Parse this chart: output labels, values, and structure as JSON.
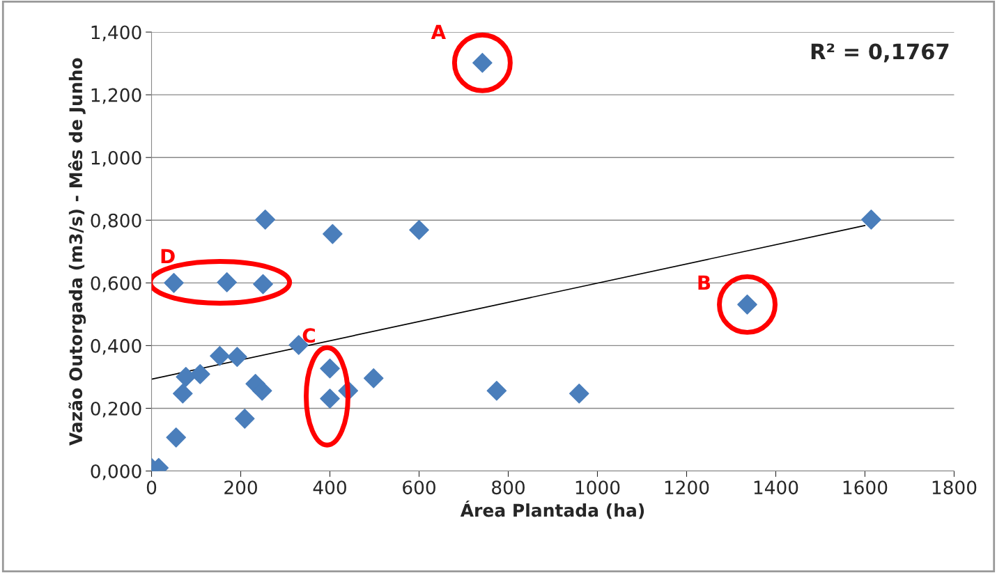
{
  "chart_data": {
    "type": "scatter",
    "xlabel": "Área Plantada (ha)",
    "ylabel": "Vazão Outorgada (m3/s) - Mês de Junho",
    "xlim": [
      0,
      1800
    ],
    "xticks": [
      0,
      200,
      400,
      600,
      800,
      1000,
      1200,
      1400,
      1600,
      1800
    ],
    "ylim": [
      0,
      1.4
    ],
    "yticks": [
      {
        "value": 0,
        "label": "0,000"
      },
      {
        "value": 0.2,
        "label": "0,200"
      },
      {
        "value": 0.4,
        "label": "0,400"
      },
      {
        "value": 0.6,
        "label": "0,600"
      },
      {
        "value": 0.8,
        "label": "0,800"
      },
      {
        "value": 1.0,
        "label": "1,000"
      },
      {
        "value": 1.2,
        "label": "1,200"
      },
      {
        "value": 1.4,
        "label": "1,400"
      }
    ],
    "grid": "y",
    "marker": "diamond",
    "series": [
      {
        "color": "#4a7ebb",
        "x": [
          0,
          16,
          50,
          55,
          70,
          77,
          109,
          153,
          169,
          192,
          209,
          233,
          248,
          250,
          255,
          330,
          400,
          400,
          406,
          441,
          498,
          600,
          774,
          959,
          1336,
          1614,
          742
        ],
        "values": [
          0.01,
          0.01,
          0.6,
          0.107,
          0.247,
          0.3,
          0.309,
          0.367,
          0.602,
          0.364,
          0.167,
          0.278,
          0.256,
          0.596,
          0.802,
          0.402,
          0.327,
          0.231,
          0.756,
          0.256,
          0.296,
          0.769,
          0.256,
          0.247,
          0.531,
          0.802,
          1.302
        ]
      },
      {
        "type": "line",
        "marker": "none",
        "color": "#000000",
        "x": [
          0,
          1600
        ],
        "values": [
          0.293,
          0.783
        ]
      }
    ],
    "annotations": [
      "R² = 0,1767",
      {
        "text": "A",
        "x": 742,
        "y": 1.302
      },
      {
        "text": "B",
        "x": 1336,
        "y": 0.531
      },
      {
        "text": "C",
        "x": 400,
        "y": 0.327
      },
      {
        "text": "D",
        "x": 169,
        "y": 0.602
      }
    ]
  }
}
